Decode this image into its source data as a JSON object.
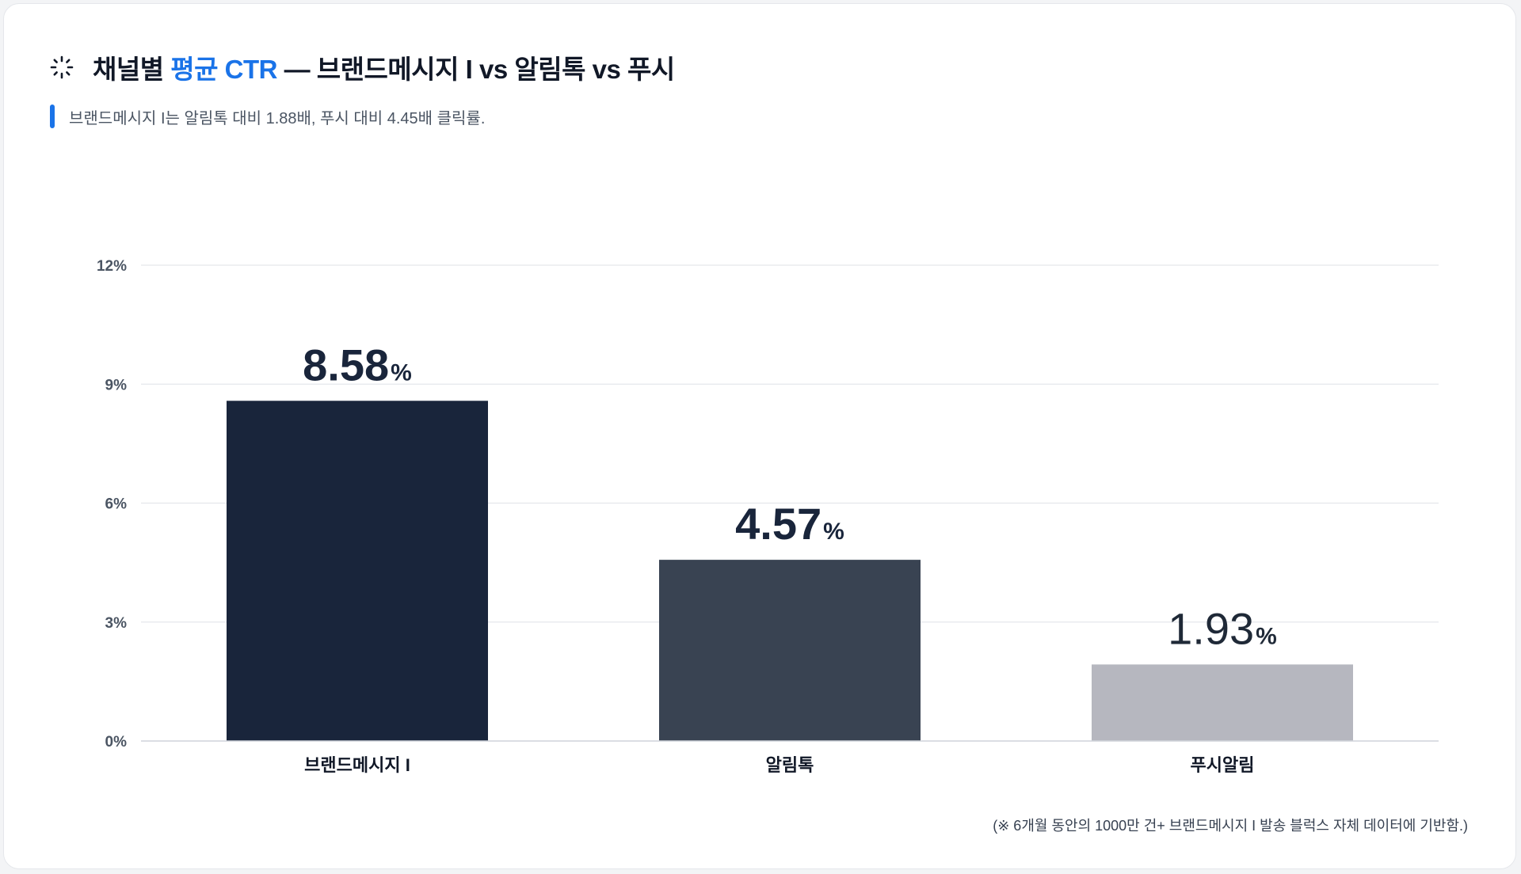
{
  "header": {
    "title_pre": "채널별 ",
    "title_accent": "평균 CTR",
    "title_post": " — 브랜드메시지 I vs 알림톡 vs 푸시",
    "subtitle": "브랜드메시지 I는 알림톡 대비 1.88배, 푸시 대비 4.45배 클릭률.",
    "icon": "sparkle-loader-icon"
  },
  "footnote": "(※ 6개월 동안의 1000만 건+ 브랜드메시지 I 발송 블럭스 자체 데이터에 기반함.)",
  "colors": {
    "accent": "#1a73e8",
    "bars": [
      "#19253b",
      "#394352",
      "#b6b7bf"
    ],
    "grid": "#e5e7eb",
    "axis_text": "#4b5563",
    "label_text": "#111827"
  },
  "chart_data": {
    "type": "bar",
    "categories": [
      "브랜드메시지 I",
      "알림톡",
      "푸시알림"
    ],
    "values": [
      8.58,
      4.57,
      1.93
    ],
    "value_labels": [
      "8.58",
      "4.57",
      "1.93"
    ],
    "value_unit": "%",
    "yticks": [
      "0%",
      "3%",
      "6%",
      "9%",
      "12%"
    ],
    "ytick_values": [
      0,
      3,
      6,
      9,
      12
    ],
    "ylim": [
      0,
      12
    ],
    "grid": true,
    "legend": false
  }
}
